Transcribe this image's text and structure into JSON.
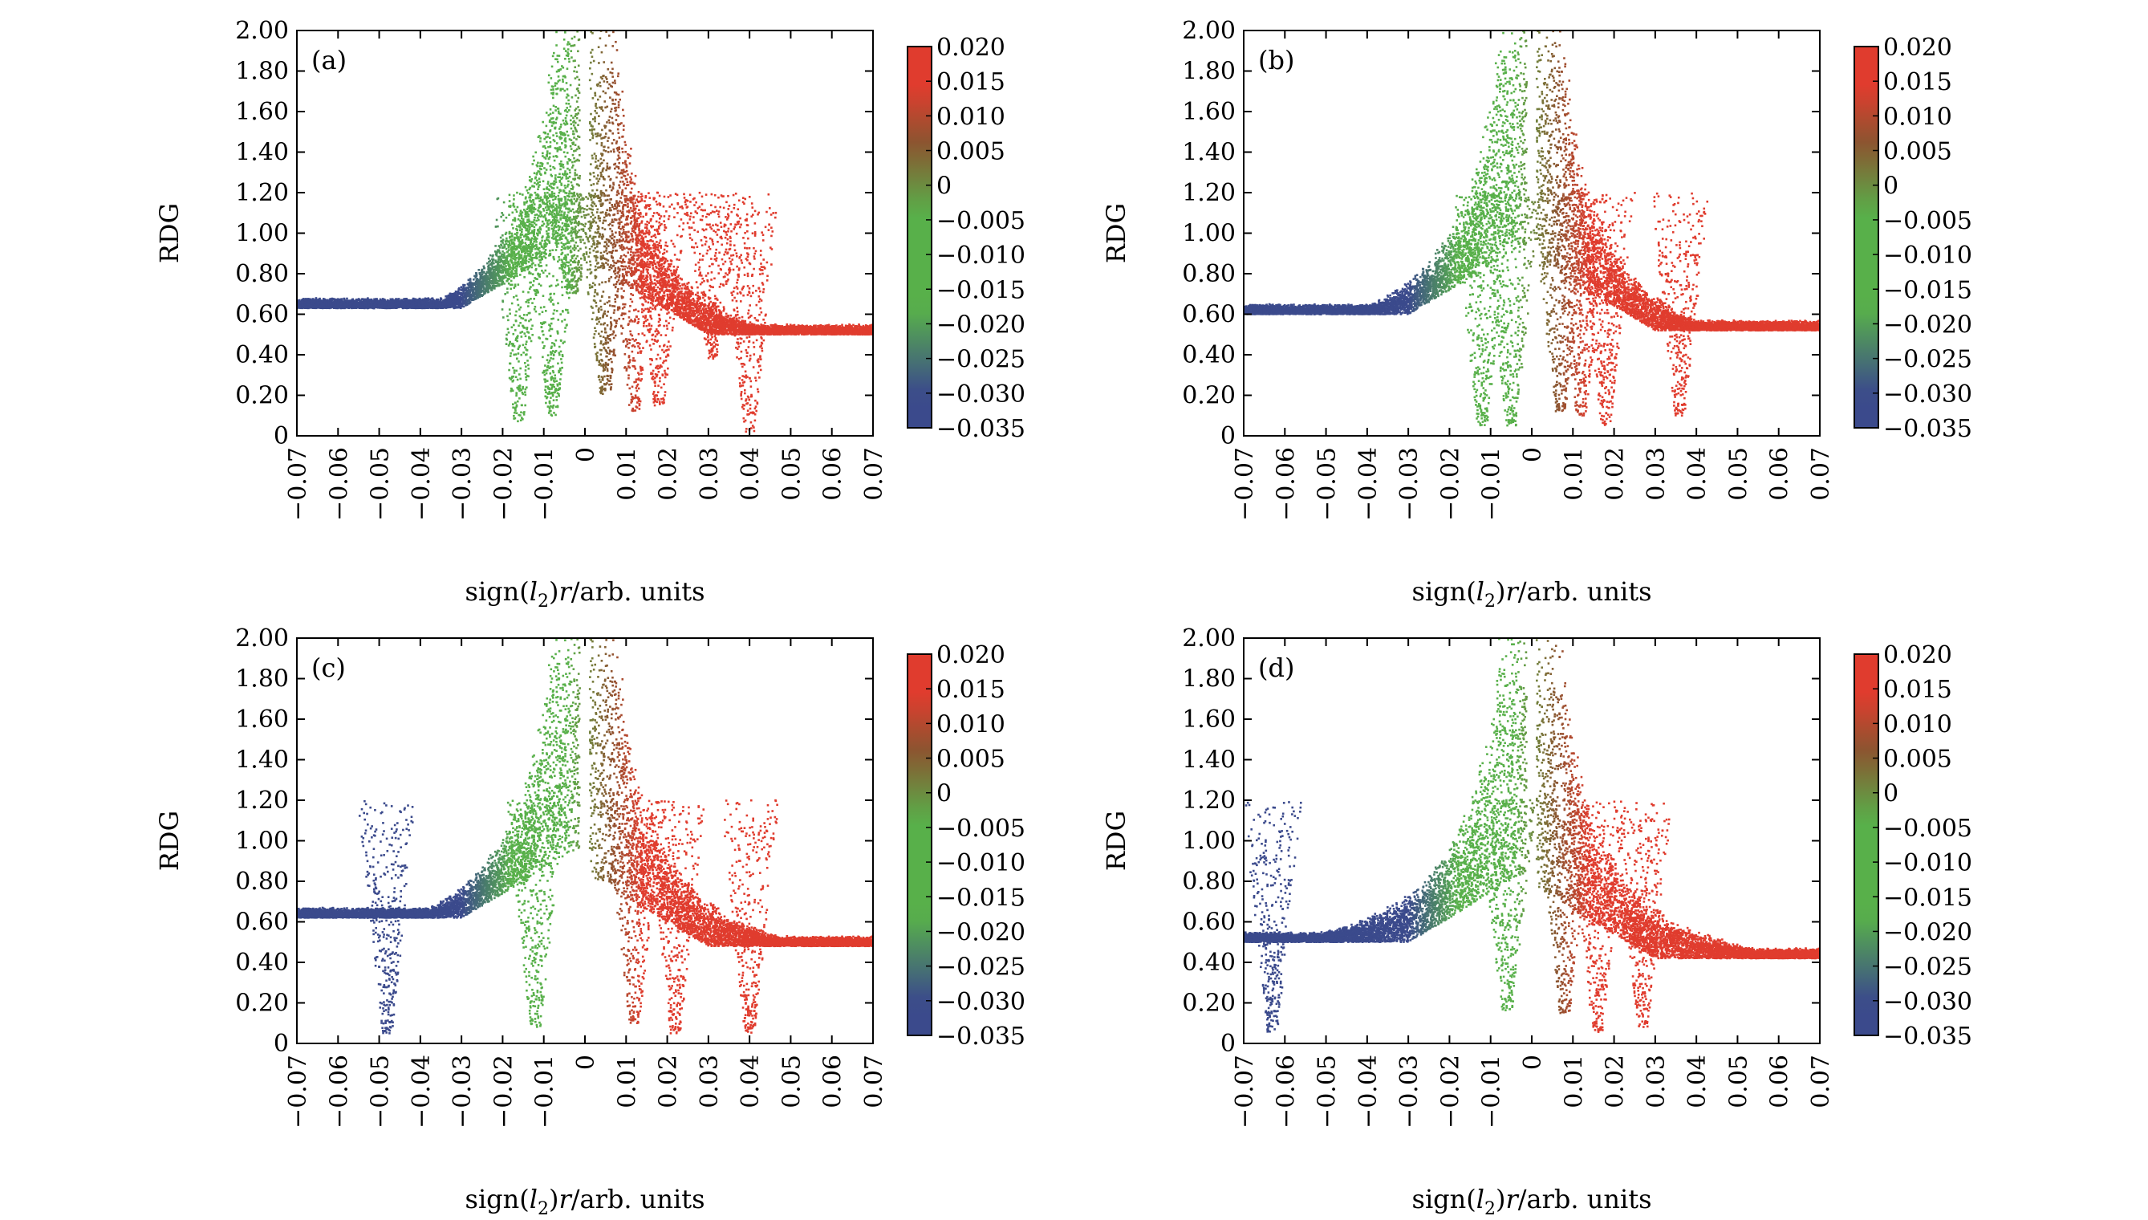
{
  "figure": {
    "colormap": [
      "#3b4a8c",
      "#3b4a8c",
      "#58b04a",
      "#58b04a",
      "#8a5530",
      "#e03c2e",
      "#e03c2e"
    ],
    "colormap_stops": [
      -0.035,
      -0.03,
      -0.018,
      -0.004,
      0.006,
      0.014,
      0.02
    ]
  },
  "chart_data": [
    {
      "panel": "(a)",
      "type": "scatter",
      "xlabel_prefix": "sign(",
      "xlabel_var": "l",
      "xlabel_sub": "2",
      "xlabel_mid": ")",
      "xlabel_r": "r",
      "xlabel_suffix": "/arb. units",
      "ylabel": "RDG",
      "xlim": [
        -0.07,
        0.07
      ],
      "ylim": [
        0,
        2.0
      ],
      "xticks": [
        -0.07,
        -0.06,
        -0.05,
        -0.04,
        -0.03,
        -0.02,
        -0.01,
        0,
        0.01,
        0.02,
        0.03,
        0.04,
        0.05,
        0.06,
        0.07
      ],
      "xtick_labels": [
        "−0.07",
        "−0.06",
        "−0.05",
        "−0.04",
        "−0.03",
        "−0.02",
        "−0.01",
        "0",
        "0.01",
        "0.02",
        "0.03",
        "0.04",
        "0.05",
        "0.06",
        "0.07"
      ],
      "yticks": [
        0,
        0.2,
        0.4,
        0.6,
        0.8,
        1.0,
        1.2,
        1.4,
        1.6,
        1.8,
        2.0
      ],
      "ytick_labels": [
        "0",
        "0.20",
        "0.40",
        "0.60",
        "0.80",
        "1.00",
        "1.20",
        "1.40",
        "1.60",
        "1.80",
        "2.00"
      ],
      "colorbar": {
        "range": [
          -0.035,
          0.02
        ],
        "ticks": [
          0.02,
          0.015,
          0.01,
          0.005,
          0,
          -0.005,
          -0.01,
          -0.015,
          -0.02,
          -0.025,
          -0.03,
          -0.035
        ],
        "tick_labels": [
          "0.020",
          "0.015",
          "0.010",
          "0.005",
          "0",
          "−0.005",
          "−0.010",
          "−0.015",
          "−0.020",
          "−0.025",
          "−0.030",
          "−0.035"
        ]
      },
      "envelope": {
        "left_amp": 0.0226,
        "right_amp": 0.022,
        "band_width": 0.3,
        "left_min_floor": 0.63,
        "right_min_floor": 0.5
      },
      "spikes": [
        {
          "x": -0.016,
          "min": 0.07,
          "color": -0.012
        },
        {
          "x": -0.008,
          "min": 0.1,
          "color": -0.008
        },
        {
          "x": -0.003,
          "min": 0.7,
          "color": -0.002
        },
        {
          "x": 0.005,
          "min": 0.2,
          "color": 0.004
        },
        {
          "x": 0.012,
          "min": 0.12,
          "color": 0.01
        },
        {
          "x": 0.018,
          "min": 0.15,
          "color": 0.018
        },
        {
          "x": 0.031,
          "min": 0.38,
          "color": 0.02
        },
        {
          "x": 0.04,
          "min": 0.02,
          "color": 0.02
        }
      ]
    },
    {
      "panel": "(b)",
      "type": "scatter",
      "xlabel_prefix": "sign(",
      "xlabel_var": "l",
      "xlabel_sub": "2",
      "xlabel_mid": ")",
      "xlabel_r": "r",
      "xlabel_suffix": "/arb. units",
      "ylabel": "RDG",
      "xlim": [
        -0.07,
        0.07
      ],
      "ylim": [
        0,
        2.0
      ],
      "xticks": [
        -0.07,
        -0.06,
        -0.05,
        -0.04,
        -0.03,
        -0.02,
        -0.01,
        0,
        0.01,
        0.02,
        0.03,
        0.04,
        0.05,
        0.06,
        0.07
      ],
      "xtick_labels": [
        "−0.07",
        "−0.06",
        "−0.05",
        "−0.04",
        "−0.03",
        "−0.02",
        "−0.01",
        "0",
        "0.01",
        "0.02",
        "0.03",
        "0.04",
        "0.05",
        "0.06",
        "0.07"
      ],
      "yticks": [
        0,
        0.2,
        0.4,
        0.6,
        0.8,
        1.0,
        1.2,
        1.4,
        1.6,
        1.8,
        2.0
      ],
      "ytick_labels": [
        "0",
        "0.20",
        "0.40",
        "0.60",
        "0.80",
        "1.00",
        "1.20",
        "1.40",
        "1.60",
        "1.80",
        "2.00"
      ],
      "colorbar": {
        "range": [
          -0.035,
          0.02
        ],
        "ticks": [
          0.02,
          0.015,
          0.01,
          0.005,
          0,
          -0.005,
          -0.01,
          -0.015,
          -0.02,
          -0.025,
          -0.03,
          -0.035
        ],
        "tick_labels": [
          "0.020",
          "0.015",
          "0.010",
          "0.005",
          "0",
          "−0.005",
          "−0.010",
          "−0.015",
          "−0.020",
          "−0.025",
          "−0.030",
          "−0.035"
        ]
      },
      "envelope": {
        "left_amp": 0.0236,
        "right_amp": 0.0228,
        "band_width": 0.33,
        "left_min_floor": 0.6,
        "right_min_floor": 0.52
      },
      "spikes": [
        {
          "x": -0.012,
          "min": 0.05,
          "color": -0.01
        },
        {
          "x": -0.005,
          "min": 0.05,
          "color": -0.004
        },
        {
          "x": 0.007,
          "min": 0.12,
          "color": 0.006
        },
        {
          "x": 0.012,
          "min": 0.1,
          "color": 0.011
        },
        {
          "x": 0.018,
          "min": 0.05,
          "color": 0.018
        },
        {
          "x": 0.036,
          "min": 0.1,
          "color": 0.02
        }
      ]
    },
    {
      "panel": "(c)",
      "type": "scatter",
      "xlabel_prefix": "sign(",
      "xlabel_var": "l",
      "xlabel_sub": "2",
      "xlabel_mid": ")",
      "xlabel_r": "r",
      "xlabel_suffix": "/arb. units",
      "ylabel": "RDG",
      "xlim": [
        -0.07,
        0.07
      ],
      "ylim": [
        0,
        2.0
      ],
      "xticks": [
        -0.07,
        -0.06,
        -0.05,
        -0.04,
        -0.03,
        -0.02,
        -0.01,
        0,
        0.01,
        0.02,
        0.03,
        0.04,
        0.05,
        0.06,
        0.07
      ],
      "xtick_labels": [
        "−0.07",
        "−0.06",
        "−0.05",
        "−0.04",
        "−0.03",
        "−0.02",
        "−0.01",
        "0",
        "0.01",
        "0.02",
        "0.03",
        "0.04",
        "0.05",
        "0.06",
        "0.07"
      ],
      "yticks": [
        0,
        0.2,
        0.4,
        0.6,
        0.8,
        1.0,
        1.2,
        1.4,
        1.6,
        1.8,
        2.0
      ],
      "ytick_labels": [
        "0",
        "0.20",
        "0.40",
        "0.60",
        "0.80",
        "1.00",
        "1.20",
        "1.40",
        "1.60",
        "1.80",
        "2.00"
      ],
      "colorbar": {
        "range": [
          -0.035,
          0.02
        ],
        "ticks": [
          0.02,
          0.015,
          0.01,
          0.005,
          0,
          -0.005,
          -0.01,
          -0.015,
          -0.02,
          -0.025,
          -0.03,
          -0.035
        ],
        "tick_labels": [
          "0.020",
          "0.015",
          "0.010",
          "0.005",
          "0",
          "−0.005",
          "−0.010",
          "−0.015",
          "−0.020",
          "−0.025",
          "−0.030",
          "−0.035"
        ]
      },
      "envelope": {
        "left_amp": 0.024,
        "right_amp": 0.0235,
        "band_width": 0.4,
        "left_min_floor": 0.62,
        "right_min_floor": 0.48
      },
      "spikes": [
        {
          "x": -0.048,
          "min": 0.05,
          "color": -0.035
        },
        {
          "x": -0.012,
          "min": 0.08,
          "color": -0.01
        },
        {
          "x": 0.012,
          "min": 0.1,
          "color": 0.01
        },
        {
          "x": 0.022,
          "min": 0.05,
          "color": 0.02
        },
        {
          "x": 0.04,
          "min": 0.05,
          "color": 0.02
        }
      ]
    },
    {
      "panel": "(d)",
      "type": "scatter",
      "xlabel_prefix": "sign(",
      "xlabel_var": "l",
      "xlabel_sub": "2",
      "xlabel_mid": ")",
      "xlabel_r": "r",
      "xlabel_suffix": "/arb. units",
      "ylabel": "RDG",
      "xlim": [
        -0.07,
        0.07
      ],
      "ylim": [
        0,
        2.0
      ],
      "xticks": [
        -0.07,
        -0.06,
        -0.05,
        -0.04,
        -0.03,
        -0.02,
        -0.01,
        0,
        0.01,
        0.02,
        0.03,
        0.04,
        0.05,
        0.06,
        0.07
      ],
      "xtick_labels": [
        "−0.07",
        "−0.06",
        "−0.05",
        "−0.04",
        "−0.03",
        "−0.02",
        "−0.01",
        "0",
        "0.01",
        "0.02",
        "0.03",
        "0.04",
        "0.05",
        "0.06",
        "0.07"
      ],
      "yticks": [
        0,
        0.2,
        0.4,
        0.6,
        0.8,
        1.0,
        1.2,
        1.4,
        1.6,
        1.8,
        2.0
      ],
      "ytick_labels": [
        "0",
        "0.20",
        "0.40",
        "0.60",
        "0.80",
        "1.00",
        "1.20",
        "1.40",
        "1.60",
        "1.80",
        "2.00"
      ],
      "colorbar": {
        "range": [
          -0.035,
          0.02
        ],
        "ticks": [
          0.02,
          0.015,
          0.01,
          0.005,
          0,
          -0.005,
          -0.01,
          -0.015,
          -0.02,
          -0.025,
          -0.03,
          -0.035
        ],
        "tick_labels": [
          "0.020",
          "0.015",
          "0.010",
          "0.005",
          "0",
          "−0.005",
          "−0.010",
          "−0.015",
          "−0.020",
          "−0.025",
          "−0.030",
          "−0.035"
        ]
      },
      "envelope": {
        "left_amp": 0.0226,
        "right_amp": 0.022,
        "band_width": 0.32,
        "left_min_floor": 0.5,
        "right_min_floor": 0.42
      },
      "spikes": [
        {
          "x": -0.063,
          "min": 0.05,
          "color": -0.035
        },
        {
          "x": -0.006,
          "min": 0.15,
          "color": -0.006
        },
        {
          "x": 0.008,
          "min": 0.15,
          "color": 0.007
        },
        {
          "x": 0.016,
          "min": 0.05,
          "color": 0.016
        },
        {
          "x": 0.027,
          "min": 0.08,
          "color": 0.02
        }
      ]
    }
  ]
}
